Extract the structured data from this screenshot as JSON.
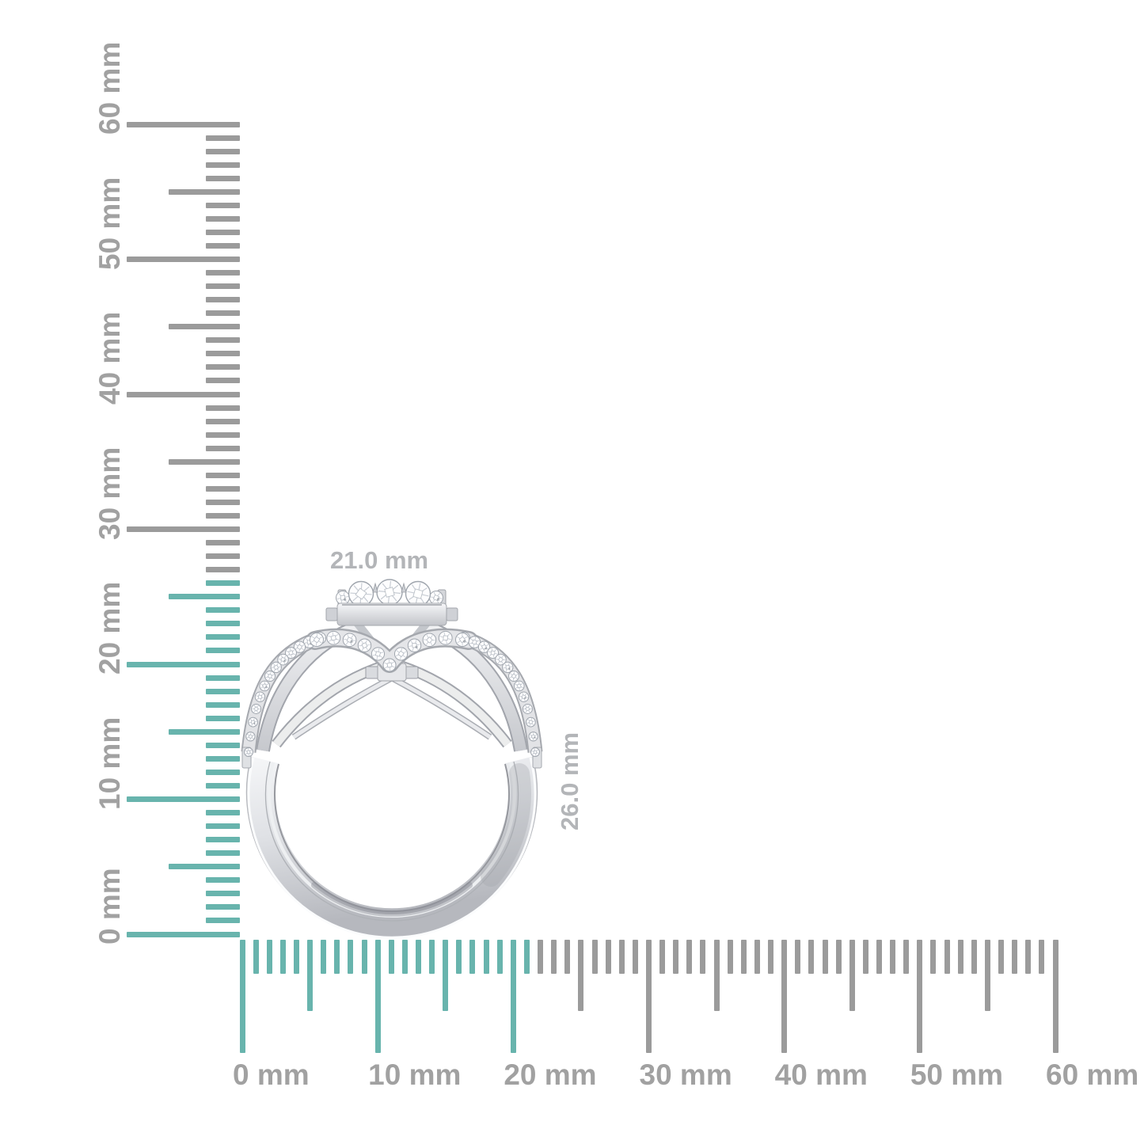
{
  "scene": {
    "background": "#ffffff",
    "description_unit": "mm"
  },
  "dimensions": {
    "width_label": "21.0 mm",
    "height_label": "26.0 mm",
    "label_color": "#b3b5b8"
  },
  "rulers": {
    "unit": "mm",
    "tick_color_active": "#68b4ad",
    "tick_color_inactive": "#9b9b9b",
    "label_color": "#a1a1a1",
    "vertical": {
      "min_mm": 0,
      "max_mm": 60,
      "minor_step_mm": 1,
      "medium_step_mm": 5,
      "major_step_mm": 10,
      "active_up_to_mm": 26,
      "labels": [
        "0 mm",
        "10 mm",
        "20 mm",
        "30 mm",
        "40 mm",
        "50 mm",
        "60 mm"
      ]
    },
    "horizontal": {
      "min_mm": 0,
      "max_mm": 60,
      "minor_step_mm": 1,
      "medium_step_mm": 5,
      "major_step_mm": 10,
      "active_up_to_mm": 21,
      "labels": [
        "0 mm",
        "10 mm",
        "20 mm",
        "30 mm",
        "40 mm",
        "50 mm",
        "60 mm"
      ]
    }
  },
  "ring": {
    "metal_light": "#f4f5f7",
    "metal_mid": "#d9dbdf",
    "metal_dark": "#9b9ea5",
    "stone_fill": "#fdfdfe",
    "stone_edge": "#9fa5ad"
  }
}
